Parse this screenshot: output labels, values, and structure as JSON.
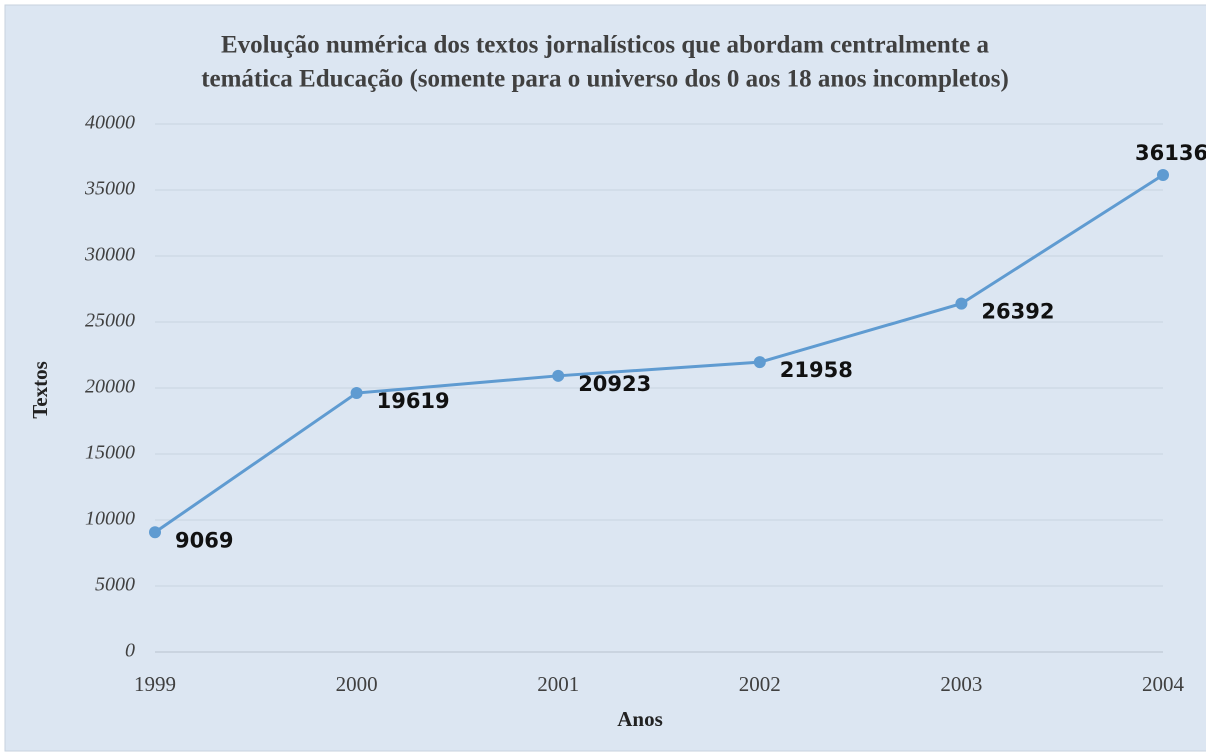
{
  "chart_data": {
    "type": "line",
    "title": [
      "Evolução numérica dos textos jornalísticos que abordam centralmente a",
      "temática Educação (somente para o universo dos 0 aos 18 anos incompletos)"
    ],
    "x_label": "Anos",
    "y_label": "Textos",
    "categories": [
      "1999",
      "2000",
      "2001",
      "2002",
      "2003",
      "2004"
    ],
    "series": [
      {
        "name": "Textos",
        "color": "#5f9bd1",
        "values": [
          9069,
          19619,
          20923,
          21958,
          26392,
          36136
        ]
      }
    ],
    "ylim": [
      0,
      40000
    ],
    "yticks": [
      0,
      5000,
      10000,
      15000,
      20000,
      25000,
      30000,
      35000,
      40000
    ],
    "grid": true
  }
}
